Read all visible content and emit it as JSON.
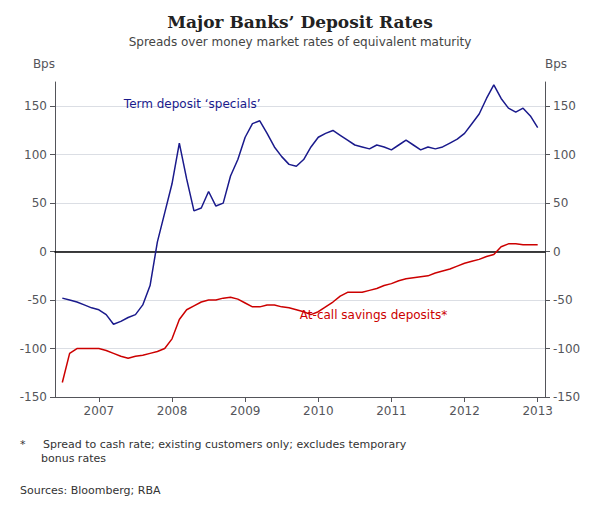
{
  "chart_data": {
    "type": "line",
    "title": "Major Banks’ Deposit Rates",
    "subtitle": "Spreads over money market rates of equivalent maturity",
    "ylabel": "Bps",
    "y2label": "Bps",
    "footnotes": [
      "*     Spread to cash rate; existing customers only; excludes temporary\n      bonus rates",
      "Sources: Bloomberg; RBA"
    ],
    "x": [
      2006.5,
      2006.6,
      2006.7,
      2006.8,
      2006.9,
      2007.0,
      2007.1,
      2007.2,
      2007.3,
      2007.4,
      2007.5,
      2007.6,
      2007.7,
      2007.8,
      2007.9,
      2008.0,
      2008.1,
      2008.2,
      2008.3,
      2008.4,
      2008.5,
      2008.6,
      2008.7,
      2008.8,
      2008.9,
      2009.0,
      2009.1,
      2009.2,
      2009.3,
      2009.4,
      2009.5,
      2009.6,
      2009.7,
      2009.8,
      2009.9,
      2010.0,
      2010.1,
      2010.2,
      2010.3,
      2010.4,
      2010.5,
      2010.6,
      2010.7,
      2010.8,
      2010.9,
      2011.0,
      2011.1,
      2011.2,
      2011.3,
      2011.4,
      2011.5,
      2011.6,
      2011.7,
      2011.8,
      2011.9,
      2012.0,
      2012.1,
      2012.2,
      2012.3,
      2012.4,
      2012.5,
      2012.6,
      2012.7,
      2012.8,
      2012.9,
      2013.0
    ],
    "series": [
      {
        "name": "Term deposit ‘specials’",
        "color": "#1a1a8c",
        "values": [
          -48,
          -50,
          -52,
          -55,
          -58,
          -60,
          -65,
          -75,
          -72,
          -68,
          -65,
          -55,
          -35,
          10,
          40,
          70,
          112,
          75,
          42,
          45,
          62,
          47,
          50,
          78,
          95,
          118,
          132,
          135,
          122,
          108,
          98,
          90,
          88,
          95,
          108,
          118,
          122,
          125,
          120,
          115,
          110,
          108,
          106,
          110,
          108,
          105,
          110,
          115,
          110,
          105,
          108,
          106,
          108,
          112,
          116,
          122,
          132,
          142,
          158,
          172,
          158,
          148,
          144,
          148,
          140,
          128
        ]
      },
      {
        "name": "At-call savings deposits*",
        "color": "#cc0000",
        "values": [
          -135,
          -105,
          -100,
          -100,
          -100,
          -100,
          -102,
          -105,
          -108,
          -110,
          -108,
          -107,
          -105,
          -103,
          -100,
          -90,
          -70,
          -60,
          -56,
          -52,
          -50,
          -50,
          -48,
          -47,
          -49,
          -53,
          -57,
          -57,
          -55,
          -55,
          -57,
          -58,
          -60,
          -62,
          -65,
          -62,
          -57,
          -52,
          -46,
          -42,
          -42,
          -42,
          -40,
          -38,
          -35,
          -33,
          -30,
          -28,
          -27,
          -26,
          -25,
          -22,
          -20,
          -18,
          -15,
          -12,
          -10,
          -8,
          -5,
          -3,
          5,
          8,
          8,
          7,
          7,
          7
        ]
      }
    ],
    "xlim": [
      2006.4,
      2013.1
    ],
    "xticks": [
      2007,
      2008,
      2009,
      2010,
      2011,
      2012,
      2013
    ],
    "ylim": [
      -150,
      175
    ],
    "yticks": [
      -150,
      -100,
      -50,
      0,
      50,
      100,
      150
    ],
    "y2lim": [
      -150,
      175
    ],
    "y2ticks": [
      -150,
      -100,
      -50,
      0,
      50,
      100,
      150
    ],
    "grid": true
  }
}
